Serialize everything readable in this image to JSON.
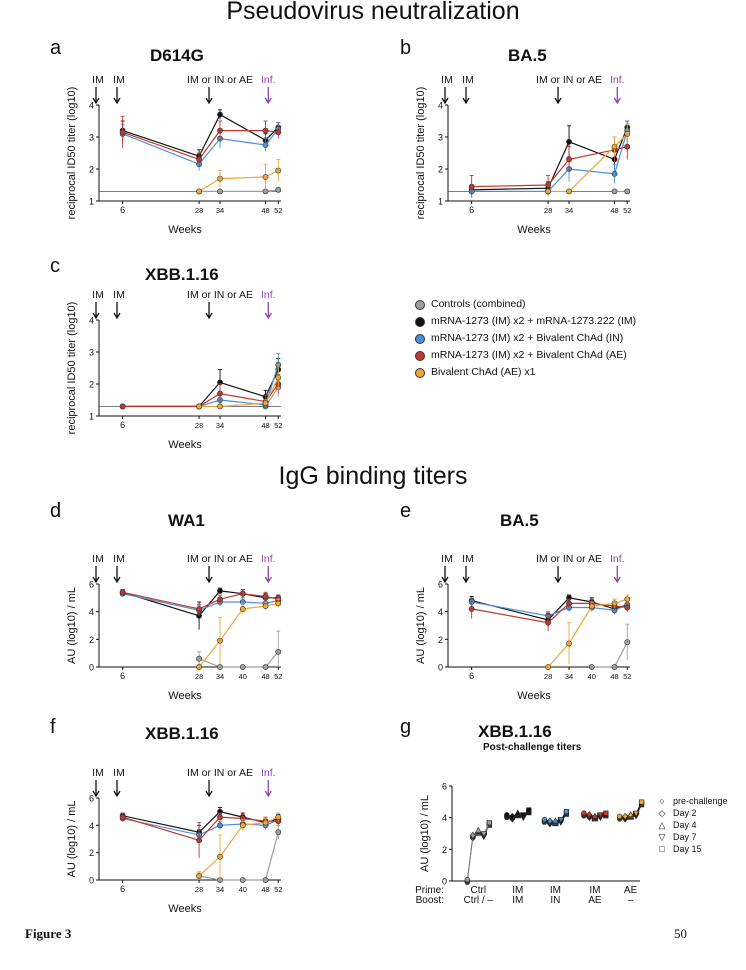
{
  "sections": {
    "neutralization_title": "Pseudovirus neutralization",
    "binding_title": "IgG binding titers"
  },
  "footer": {
    "figure_label": "Figure 3",
    "page_number": "50"
  },
  "colors": {
    "controls": "#9e9e9e",
    "mrna222": "#111111",
    "bivalent_in": "#4a90d9",
    "bivalent_ae": "#c0392b",
    "bivalent_ae_x1": "#f0a637",
    "infection_arrow": "#8e44ad"
  },
  "legend": [
    {
      "label": "Controls (combined)",
      "color_key": "controls"
    },
    {
      "label": "mRNA-1273 (IM) x2 + mRNA-1273.222 (IM)",
      "color_key": "mrna222"
    },
    {
      "label": "mRNA-1273 (IM) x2 + Bivalent ChAd (IN)",
      "color_key": "bivalent_in"
    },
    {
      "label": "mRNA-1273 (IM) x2 + Bivalent ChAd (AE)",
      "color_key": "bivalent_ae"
    },
    {
      "label": "Bivalent ChAd (AE) x1",
      "color_key": "bivalent_ae_x1"
    }
  ],
  "annotations": {
    "im": "IM",
    "boost": "IM or IN or AE",
    "infection": "Inf."
  },
  "chart_data": [
    {
      "id": "a",
      "letter": "a",
      "type": "line",
      "title": "D614G",
      "ylabel": "reciprocal ID50 titer (log10)",
      "xlabel": "Weeks",
      "ylim": [
        1,
        4
      ],
      "yticks": [
        1,
        2,
        3,
        4
      ],
      "xticks": [
        "6",
        "28",
        "34",
        "48",
        "52"
      ],
      "xcats": [
        6,
        28,
        34,
        48,
        52
      ],
      "threshold": 1.3,
      "series": [
        {
          "color_key": "controls",
          "x": [
            28,
            34,
            48,
            52
          ],
          "y": [
            1.3,
            1.3,
            1.3,
            1.35
          ],
          "err": [
            0,
            0,
            0,
            0.05
          ]
        },
        {
          "color_key": "mrna222",
          "x": [
            6,
            28,
            34,
            48,
            52
          ],
          "y": [
            3.2,
            2.4,
            3.7,
            2.9,
            3.3
          ],
          "err": [
            0.3,
            0.2,
            0.15,
            0.2,
            0.15
          ]
        },
        {
          "color_key": "bivalent_in",
          "x": [
            6,
            28,
            34,
            48,
            52
          ],
          "y": [
            3.1,
            2.15,
            2.95,
            2.75,
            3.25
          ],
          "err": [
            0.3,
            0.2,
            0.3,
            0.2,
            0.2
          ]
        },
        {
          "color_key": "bivalent_ae",
          "x": [
            6,
            28,
            34,
            48,
            52
          ],
          "y": [
            3.15,
            2.3,
            3.2,
            3.2,
            3.15
          ],
          "err": [
            0.5,
            0.2,
            0.3,
            0.3,
            0.2
          ]
        },
        {
          "color_key": "bivalent_ae_x1",
          "x": [
            28,
            34,
            48,
            52
          ],
          "y": [
            1.3,
            1.7,
            1.75,
            1.95
          ],
          "err": [
            0,
            0.25,
            0.4,
            0.35
          ]
        }
      ]
    },
    {
      "id": "b",
      "letter": "b",
      "type": "line",
      "title": "BA.5",
      "ylabel": "reciprocal ID50 titer (log10)",
      "xlabel": "Weeks",
      "ylim": [
        1,
        4
      ],
      "yticks": [
        1,
        2,
        3,
        4
      ],
      "xticks": [
        "6",
        "28",
        "34",
        "48",
        "52"
      ],
      "xcats": [
        6,
        28,
        34,
        48,
        52
      ],
      "threshold": 1.3,
      "series": [
        {
          "color_key": "controls",
          "x": [
            48,
            52
          ],
          "y": [
            1.3,
            1.3
          ],
          "err": [
            0,
            0
          ]
        },
        {
          "color_key": "mrna222",
          "x": [
            6,
            28,
            34,
            48,
            52
          ],
          "y": [
            1.35,
            1.4,
            2.85,
            2.3,
            3.3
          ],
          "err": [
            0.15,
            0.2,
            0.5,
            0.3,
            0.2
          ]
        },
        {
          "color_key": "bivalent_in",
          "x": [
            6,
            28,
            34,
            48,
            52
          ],
          "y": [
            1.3,
            1.3,
            2.0,
            1.85,
            3.2
          ],
          "err": [
            0.1,
            0.15,
            0.4,
            0.3,
            0.3
          ]
        },
        {
          "color_key": "bivalent_ae",
          "x": [
            6,
            28,
            34,
            48,
            52
          ],
          "y": [
            1.45,
            1.5,
            2.3,
            2.6,
            2.7
          ],
          "err": [
            0.35,
            0.3,
            0.4,
            0.4,
            0.4
          ]
        },
        {
          "color_key": "bivalent_ae_x1",
          "x": [
            28,
            34,
            48,
            52
          ],
          "y": [
            1.3,
            1.3,
            2.7,
            3.1
          ],
          "err": [
            0,
            0.05,
            0.3,
            0.3
          ]
        }
      ]
    },
    {
      "id": "c",
      "letter": "c",
      "type": "line",
      "title": "XBB.1.16",
      "ylabel": "reciprocal ID50 titer (log10)",
      "xlabel": "Weeks",
      "ylim": [
        1,
        4
      ],
      "yticks": [
        1,
        2,
        3,
        4
      ],
      "xticks": [
        "6",
        "28",
        "34",
        "48",
        "52"
      ],
      "xcats": [
        6,
        28,
        34,
        48,
        52
      ],
      "threshold": 1.3,
      "series": [
        {
          "color_key": "controls",
          "x": [
            48,
            52
          ],
          "y": [
            1.3,
            1.9
          ],
          "err": [
            0,
            0.3
          ]
        },
        {
          "color_key": "mrna222",
          "x": [
            6,
            28,
            34,
            48,
            52
          ],
          "y": [
            1.3,
            1.3,
            2.05,
            1.6,
            2.45
          ],
          "err": [
            0,
            0,
            0.4,
            0.2,
            0.35
          ]
        },
        {
          "color_key": "bivalent_in",
          "x": [
            6,
            28,
            34,
            48,
            52
          ],
          "y": [
            1.3,
            1.3,
            1.5,
            1.35,
            2.6
          ],
          "err": [
            0,
            0,
            0.2,
            0.1,
            0.35
          ]
        },
        {
          "color_key": "bivalent_ae",
          "x": [
            6,
            28,
            34,
            48,
            52
          ],
          "y": [
            1.3,
            1.3,
            1.7,
            1.45,
            2.0
          ],
          "err": [
            0,
            0,
            0.3,
            0.2,
            0.3
          ]
        },
        {
          "color_key": "bivalent_ae_x1",
          "x": [
            28,
            34,
            48,
            52
          ],
          "y": [
            1.3,
            1.3,
            1.4,
            2.2
          ],
          "err": [
            0,
            0,
            0.1,
            0.4
          ]
        }
      ]
    },
    {
      "id": "d",
      "letter": "d",
      "type": "line",
      "title": "WA1",
      "ylabel": "AU (log10) / mL",
      "xlabel": "Weeks",
      "ylim": [
        0,
        6
      ],
      "yticks": [
        0,
        2,
        4,
        6
      ],
      "xticks": [
        "6",
        "28",
        "34",
        "40",
        "48",
        "52"
      ],
      "xcats": [
        6,
        28,
        34,
        40,
        48,
        52
      ],
      "threshold": null,
      "series": [
        {
          "color_key": "controls",
          "x": [
            28,
            34,
            40,
            48,
            52
          ],
          "y": [
            0.6,
            0,
            0,
            0,
            1.1
          ],
          "err": [
            0.5,
            0,
            0,
            0,
            1.5
          ]
        },
        {
          "color_key": "mrna222",
          "x": [
            6,
            28,
            34,
            40,
            48,
            52
          ],
          "y": [
            5.4,
            3.7,
            5.5,
            5.3,
            5.0,
            5.0
          ],
          "err": [
            0.2,
            1.0,
            0.2,
            0.3,
            0.3,
            0.2
          ]
        },
        {
          "color_key": "bivalent_in",
          "x": [
            6,
            28,
            34,
            40,
            48,
            52
          ],
          "y": [
            5.3,
            4.1,
            4.7,
            4.7,
            4.6,
            4.8
          ],
          "err": [
            0.2,
            0.4,
            0.3,
            0.3,
            0.3,
            0.3
          ]
        },
        {
          "color_key": "bivalent_ae",
          "x": [
            6,
            28,
            34,
            40,
            48,
            52
          ],
          "y": [
            5.4,
            4.2,
            4.9,
            5.3,
            5.1,
            4.9
          ],
          "err": [
            0.2,
            0.3,
            0.3,
            0.3,
            0.3,
            0.3
          ]
        },
        {
          "color_key": "bivalent_ae_x1",
          "x": [
            28,
            34,
            40,
            48,
            52
          ],
          "y": [
            0,
            1.9,
            4.2,
            4.4,
            4.6
          ],
          "err": [
            0,
            1.7,
            0.4,
            0.3,
            0.3
          ]
        }
      ]
    },
    {
      "id": "e",
      "letter": "e",
      "type": "line",
      "title": "BA.5",
      "ylabel": "AU (log10) / mL",
      "xlabel": "Weeks",
      "ylim": [
        0,
        6
      ],
      "yticks": [
        0,
        2,
        4,
        6
      ],
      "xticks": [
        "6",
        "28",
        "34",
        "40",
        "48",
        "52"
      ],
      "xcats": [
        6,
        28,
        34,
        40,
        48,
        52
      ],
      "threshold": null,
      "series": [
        {
          "color_key": "controls",
          "x": [
            40,
            48,
            52
          ],
          "y": [
            0,
            0,
            1.8
          ],
          "err": [
            0,
            0,
            1.3
          ]
        },
        {
          "color_key": "mrna222",
          "x": [
            6,
            28,
            34,
            40,
            48,
            52
          ],
          "y": [
            4.8,
            3.4,
            5.0,
            4.7,
            4.2,
            4.5
          ],
          "err": [
            0.3,
            0.5,
            0.2,
            0.3,
            0.3,
            0.3
          ]
        },
        {
          "color_key": "bivalent_in",
          "x": [
            6,
            28,
            34,
            40,
            48,
            52
          ],
          "y": [
            4.7,
            3.7,
            4.3,
            4.3,
            4.1,
            4.5
          ],
          "err": [
            0.3,
            0.3,
            0.3,
            0.3,
            0.3,
            0.3
          ]
        },
        {
          "color_key": "bivalent_ae",
          "x": [
            6,
            28,
            34,
            40,
            48,
            52
          ],
          "y": [
            4.2,
            3.2,
            4.6,
            4.6,
            4.4,
            4.3
          ],
          "err": [
            0.7,
            0.6,
            0.3,
            0.3,
            0.3,
            0.3
          ]
        },
        {
          "color_key": "bivalent_ae_x1",
          "x": [
            28,
            34,
            40,
            48,
            52
          ],
          "y": [
            0,
            1.7,
            4.4,
            4.6,
            4.9
          ],
          "err": [
            0,
            1.5,
            0.3,
            0.3,
            0.3
          ]
        }
      ]
    },
    {
      "id": "f",
      "letter": "f",
      "type": "line",
      "title": "XBB.1.16",
      "ylabel": "AU (log10) / mL",
      "xlabel": "Weeks",
      "ylim": [
        0,
        6
      ],
      "yticks": [
        0,
        2,
        4,
        6
      ],
      "xticks": [
        "6",
        "28",
        "34",
        "40",
        "48",
        "52"
      ],
      "xcats": [
        6,
        28,
        34,
        40,
        48,
        52
      ],
      "threshold": null,
      "series": [
        {
          "color_key": "controls",
          "x": [
            28,
            34,
            40,
            48,
            52
          ],
          "y": [
            0.3,
            0,
            0,
            0,
            3.5
          ],
          "err": [
            0.3,
            0,
            0,
            0,
            0.5
          ]
        },
        {
          "color_key": "mrna222",
          "x": [
            6,
            28,
            34,
            40,
            48,
            52
          ],
          "y": [
            4.7,
            3.5,
            5.0,
            4.6,
            4.2,
            4.5
          ],
          "err": [
            0.2,
            0.5,
            0.3,
            0.3,
            0.3,
            0.3
          ]
        },
        {
          "color_key": "bivalent_in",
          "x": [
            6,
            28,
            34,
            40,
            48,
            52
          ],
          "y": [
            4.5,
            3.3,
            4.0,
            4.1,
            4.0,
            4.4
          ],
          "err": [
            0.2,
            0.4,
            0.3,
            0.3,
            0.3,
            0.3
          ]
        },
        {
          "color_key": "bivalent_ae",
          "x": [
            6,
            28,
            34,
            40,
            48,
            52
          ],
          "y": [
            4.6,
            2.9,
            4.6,
            4.5,
            4.3,
            4.3
          ],
          "err": [
            0.3,
            1.3,
            0.3,
            0.3,
            0.3,
            0.3
          ]
        },
        {
          "color_key": "bivalent_ae_x1",
          "x": [
            28,
            34,
            40,
            48,
            52
          ],
          "y": [
            0.3,
            1.7,
            4.0,
            4.2,
            4.6
          ],
          "err": [
            0.3,
            1.6,
            0.4,
            0.3,
            0.3
          ]
        }
      ]
    },
    {
      "id": "g",
      "letter": "g",
      "type": "scatter",
      "title": "XBB.1.16",
      "subtitle": "Post-challenge titers",
      "ylabel": "AU (log10) / mL",
      "ylim": [
        0,
        6
      ],
      "yticks": [
        0,
        2,
        4,
        6
      ],
      "row_labels": {
        "prime": "Prime:",
        "boost": "Boost:"
      },
      "groups": [
        {
          "prime": "Ctrl",
          "boost": "Ctrl / –",
          "color_key": "controls",
          "values": [
            0,
            2.8,
            3.1,
            2.9,
            3.6
          ]
        },
        {
          "prime": "IM",
          "boost": "IM",
          "color_key": "mrna222",
          "values": [
            4.1,
            4.0,
            4.2,
            4.1,
            4.4
          ]
        },
        {
          "prime": "IM",
          "boost": "IN",
          "color_key": "bivalent_in",
          "values": [
            3.8,
            3.7,
            3.7,
            3.8,
            4.3
          ]
        },
        {
          "prime": "IM",
          "boost": "AE",
          "color_key": "bivalent_ae",
          "values": [
            4.2,
            4.1,
            4.0,
            4.1,
            4.2
          ]
        },
        {
          "prime": "AE",
          "boost": "–",
          "color_key": "bivalent_ae_x1",
          "values": [
            4.0,
            4.0,
            4.1,
            4.2,
            4.9
          ]
        }
      ],
      "legend": [
        {
          "label": "pre-challenge",
          "symbol": "○"
        },
        {
          "label": "Day 2",
          "symbol": "◇"
        },
        {
          "label": "Day 4",
          "symbol": "△"
        },
        {
          "label": "Day 7",
          "symbol": "▽"
        },
        {
          "label": "Day 15",
          "symbol": "□"
        }
      ]
    }
  ]
}
